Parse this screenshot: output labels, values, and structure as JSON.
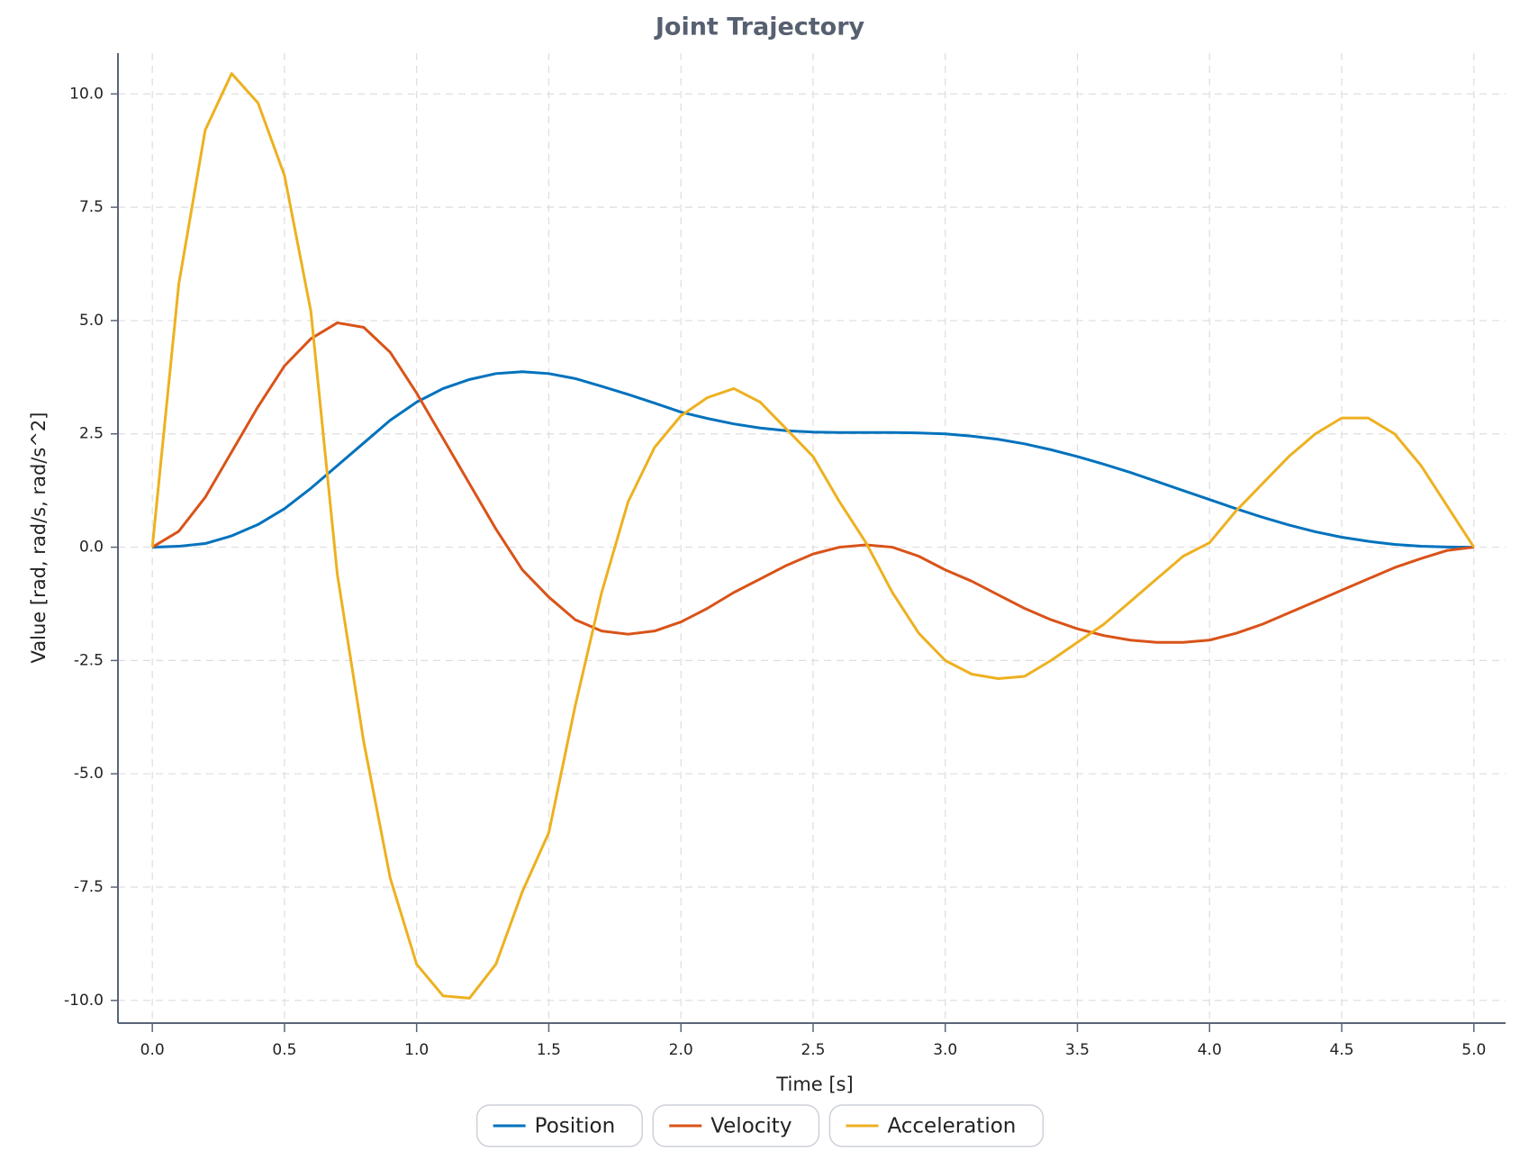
{
  "chart_data": {
    "type": "line",
    "title": "Joint Trajectory",
    "x_label": "Time [s]",
    "y_label": "Value [rad, rad/s, rad/s^2]",
    "x": [
      0,
      0.1,
      0.2,
      0.3,
      0.4,
      0.5,
      0.6,
      0.7,
      0.8,
      0.9,
      1.0,
      1.1,
      1.2,
      1.3,
      1.4,
      1.5,
      1.6,
      1.7,
      1.8,
      1.9,
      2.0,
      2.1,
      2.2,
      2.3,
      2.4,
      2.5,
      2.6,
      2.7,
      2.8,
      2.9,
      3.0,
      3.1,
      3.2,
      3.3,
      3.4,
      3.5,
      3.6,
      3.7,
      3.8,
      3.9,
      4.0,
      4.1,
      4.2,
      4.3,
      4.4,
      4.5,
      4.6,
      4.7,
      4.8,
      4.9,
      5.0
    ],
    "series": [
      {
        "name": "Position",
        "color": "#0072bd",
        "values": [
          0,
          0.02,
          0.08,
          0.25,
          0.5,
          0.85,
          1.3,
          1.8,
          2.3,
          2.8,
          3.2,
          3.5,
          3.7,
          3.83,
          3.87,
          3.83,
          3.72,
          3.55,
          3.37,
          3.18,
          2.98,
          2.84,
          2.72,
          2.63,
          2.57,
          2.54,
          2.53,
          2.53,
          2.53,
          2.52,
          2.5,
          2.45,
          2.38,
          2.28,
          2.15,
          2.0,
          1.83,
          1.65,
          1.45,
          1.25,
          1.05,
          0.85,
          0.66,
          0.49,
          0.34,
          0.22,
          0.13,
          0.06,
          0.02,
          0.005,
          0
        ]
      },
      {
        "name": "Velocity",
        "color": "#d95319",
        "values": [
          0,
          0.35,
          1.1,
          2.1,
          3.1,
          4.0,
          4.6,
          4.95,
          4.85,
          4.3,
          3.4,
          2.4,
          1.4,
          0.4,
          -0.5,
          -1.1,
          -1.6,
          -1.85,
          -1.92,
          -1.85,
          -1.65,
          -1.35,
          -1.0,
          -0.7,
          -0.4,
          -0.15,
          0.0,
          0.05,
          0.0,
          -0.2,
          -0.5,
          -0.75,
          -1.05,
          -1.35,
          -1.6,
          -1.8,
          -1.95,
          -2.05,
          -2.1,
          -2.1,
          -2.05,
          -1.9,
          -1.7,
          -1.45,
          -1.2,
          -0.95,
          -0.7,
          -0.45,
          -0.25,
          -0.07,
          0
        ]
      },
      {
        "name": "Acceleration",
        "color": "#edb120",
        "values": [
          0,
          5.8,
          9.2,
          10.45,
          9.8,
          8.2,
          5.2,
          -0.6,
          -4.3,
          -7.3,
          -9.2,
          -9.9,
          -9.95,
          -9.2,
          -7.6,
          -6.3,
          -3.5,
          -1.0,
          1.0,
          2.2,
          2.9,
          3.3,
          3.5,
          3.2,
          2.6,
          2.0,
          1.0,
          0.1,
          -1.0,
          -1.9,
          -2.5,
          -2.8,
          -2.9,
          -2.85,
          -2.5,
          -2.1,
          -1.7,
          -1.2,
          -0.7,
          -0.2,
          0.1,
          0.8,
          1.4,
          2.0,
          2.5,
          2.85,
          2.85,
          2.5,
          1.8,
          0.9,
          0
        ]
      }
    ],
    "xlim": [
      -0.13,
      5.12
    ],
    "ylim": [
      -10.5,
      10.9
    ],
    "xticks": [
      {
        "value": 0,
        "label": "0.0"
      },
      {
        "value": 0.5,
        "label": "0.5"
      },
      {
        "value": 1,
        "label": "1.0"
      },
      {
        "value": 1.5,
        "label": "1.5"
      },
      {
        "value": 2,
        "label": "2.0"
      },
      {
        "value": 2.5,
        "label": "2.5"
      },
      {
        "value": 3,
        "label": "3.0"
      },
      {
        "value": 3.5,
        "label": "3.5"
      },
      {
        "value": 4,
        "label": "4.0"
      },
      {
        "value": 4.5,
        "label": "4.5"
      },
      {
        "value": 5,
        "label": "5.0"
      }
    ],
    "yticks": [
      {
        "value": -10,
        "label": "-10.0"
      },
      {
        "value": -7.5,
        "label": "-7.5"
      },
      {
        "value": -5,
        "label": "-5.0"
      },
      {
        "value": -2.5,
        "label": "-2.5"
      },
      {
        "value": 0,
        "label": "0.0"
      },
      {
        "value": 2.5,
        "label": "2.5"
      },
      {
        "value": 5,
        "label": "5.0"
      },
      {
        "value": 7.5,
        "label": "7.5"
      },
      {
        "value": 10,
        "label": "10.0"
      }
    ],
    "grid": true,
    "legend": "bottom"
  }
}
